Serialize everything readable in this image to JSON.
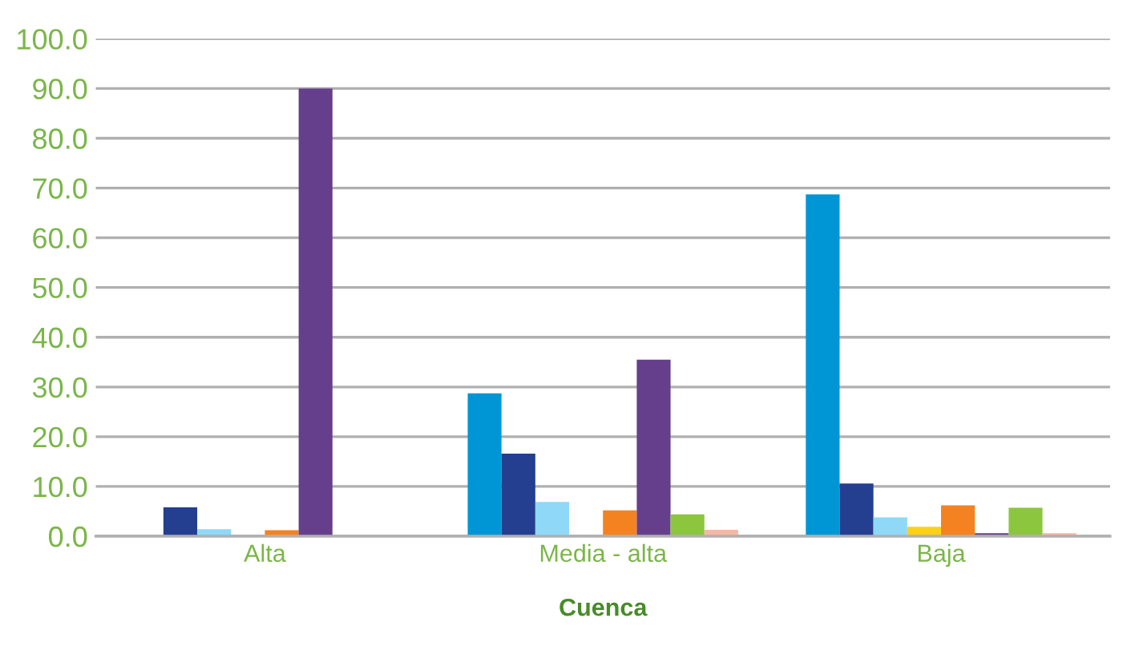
{
  "chart_data": {
    "type": "bar",
    "xlabel": "Cuenca",
    "categories": [
      "Alta",
      "Media - alta",
      "Baja"
    ],
    "series": [
      {
        "color": "#0096d6",
        "values": [
          0,
          28.7,
          68.7
        ]
      },
      {
        "color": "#243f8f",
        "values": [
          5.8,
          16.6,
          10.6
        ]
      },
      {
        "color": "#8fd8f8",
        "values": [
          1.4,
          6.9,
          3.8
        ]
      },
      {
        "color": "#fcd116",
        "values": [
          0,
          0,
          1.9
        ]
      },
      {
        "color": "#f58220",
        "values": [
          1.2,
          5.2,
          6.2
        ]
      },
      {
        "color": "#653f8b",
        "values": [
          90,
          35.5,
          0.6
        ]
      },
      {
        "color": "#8cc63f",
        "values": [
          0,
          4.4,
          5.7
        ]
      },
      {
        "color": "#f7b7a3",
        "values": [
          0,
          1.3,
          0.6
        ]
      }
    ],
    "ylim": [
      0,
      100
    ],
    "yticks": [
      {
        "value": 0,
        "label": "0.0"
      },
      {
        "value": 10,
        "label": "10.0"
      },
      {
        "value": 20,
        "label": "20.0"
      },
      {
        "value": 30,
        "label": "30.0"
      },
      {
        "value": 40,
        "label": "40.0"
      },
      {
        "value": 50,
        "label": "50.0"
      },
      {
        "value": 60,
        "label": "60.0"
      },
      {
        "value": 70,
        "label": "70.0"
      },
      {
        "value": 80,
        "label": "80.0"
      },
      {
        "value": 90,
        "label": "90.0"
      },
      {
        "value": 100,
        "label": "100.0"
      }
    ],
    "grid": "y"
  }
}
